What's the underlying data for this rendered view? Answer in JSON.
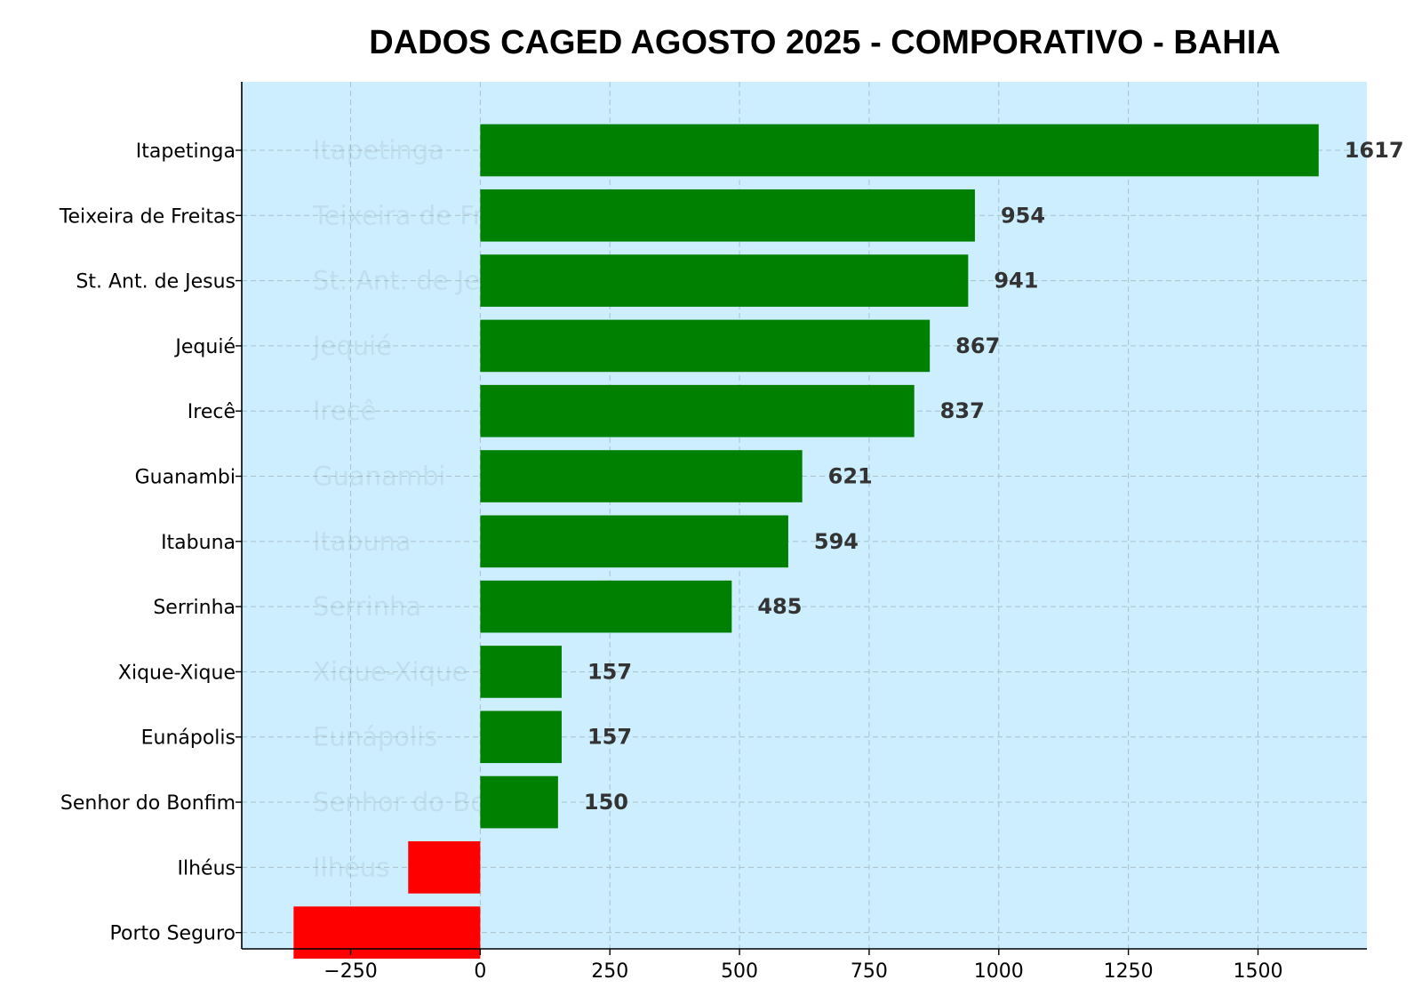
{
  "chart_data": {
    "type": "bar",
    "orientation": "horizontal",
    "title": "DADOS CAGED AGOSTO 2025 - COMPORATIVO - BAHIA",
    "categories": [
      "Itapetinga",
      "Teixeira de Freitas",
      "St. Ant. de Jesus",
      "Jequié",
      "Irecê",
      "Guanambi",
      "Itabuna",
      "Serrinha",
      "Xique-Xique",
      "Eunápolis",
      "Senhor do Bonfim",
      "Ilhéus",
      "Porto Seguro"
    ],
    "values": [
      1617,
      954,
      941,
      867,
      837,
      621,
      594,
      485,
      157,
      157,
      150,
      -139,
      -360
    ],
    "value_labels": [
      "1617",
      "954",
      "941",
      "867",
      "837",
      "621",
      "594",
      "485",
      "157",
      "157",
      "150",
      "",
      ""
    ],
    "xticks": [
      -250,
      0,
      250,
      500,
      750,
      1000,
      1250,
      1500
    ],
    "xtick_labels": [
      "−250",
      "0",
      "250",
      "500",
      "750",
      "1000",
      "1250",
      "1500"
    ],
    "xlim": [
      -460,
      1710
    ],
    "grid": true,
    "positive_color": "#008000",
    "negative_color": "#ff0000",
    "plot_background": "#cdeefe"
  }
}
